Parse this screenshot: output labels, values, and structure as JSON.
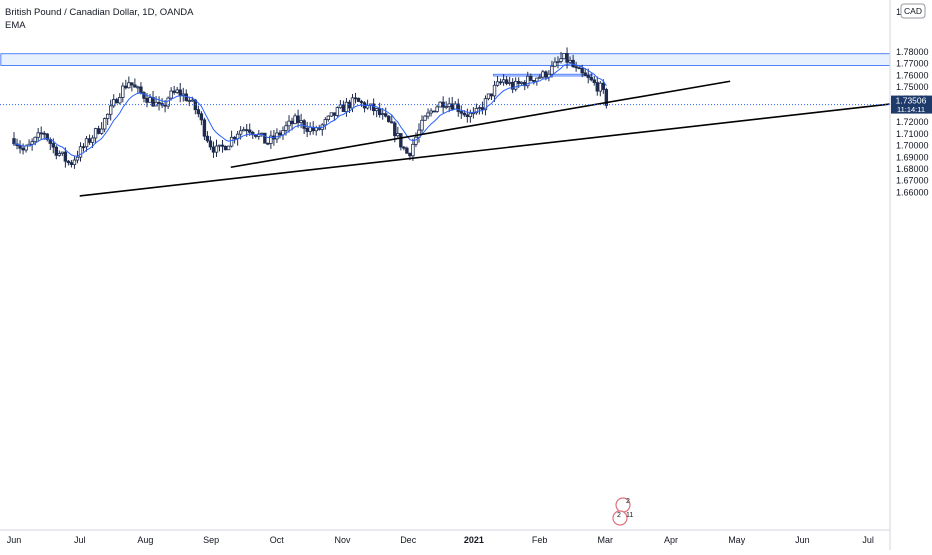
{
  "header": {
    "symbol_line": "British Pound / Canadian Dollar, 1D, OANDA",
    "indicator_label": "EMA",
    "currency_badge": "CAD",
    "badge_color": "#131722"
  },
  "colors": {
    "candle": "#1e2b4e",
    "ema": "#2962ff",
    "zone_fill": "#e3eefd",
    "zone_border": "#2962ff",
    "trendline": "#000000",
    "last_price_bg": "#1e3a6b",
    "dotted_line": "#2962ff"
  },
  "chart_data": {
    "type": "candlestick",
    "title": "British Pound / Canadian Dollar, 1D, OANDA",
    "ylim": [
      1.655,
      1.8025
    ],
    "y_ticks": [
      "1.78000",
      "1.77000",
      "1.76000",
      "1.75000",
      "1.74000",
      "1.73000",
      "1.72000",
      "1.71000",
      "1.70000",
      "1.69000",
      "1.68000",
      "1.67000",
      "1.66000"
    ],
    "x_ticks": [
      {
        "label": "Jun",
        "month": 0
      },
      {
        "label": "Jul",
        "month": 1
      },
      {
        "label": "Aug",
        "month": 2
      },
      {
        "label": "Sep",
        "month": 3
      },
      {
        "label": "Oct",
        "month": 4
      },
      {
        "label": "Nov",
        "month": 5
      },
      {
        "label": "Dec",
        "month": 6
      },
      {
        "label": "2021",
        "month": 7,
        "bold": true
      },
      {
        "label": "Feb",
        "month": 8
      },
      {
        "label": "Mar",
        "month": 9
      },
      {
        "label": "Apr",
        "month": 10
      },
      {
        "label": "May",
        "month": 11
      },
      {
        "label": "Jun",
        "month": 12
      },
      {
        "label": "Jul",
        "month": 13
      }
    ],
    "top_partial_tick": "1.7",
    "last_price": "1.73506",
    "last_price_value": 1.73506,
    "countdown": "11:14:11",
    "price_path": [
      [
        0,
        1.706
      ],
      [
        0.15,
        1.695
      ],
      [
        0.3,
        1.703
      ],
      [
        0.45,
        1.712
      ],
      [
        0.6,
        1.698
      ],
      [
        0.75,
        1.69
      ],
      [
        0.85,
        1.684
      ],
      [
        1.0,
        1.695
      ],
      [
        1.15,
        1.705
      ],
      [
        1.3,
        1.715
      ],
      [
        1.45,
        1.728
      ],
      [
        1.6,
        1.745
      ],
      [
        1.75,
        1.755
      ],
      [
        1.85,
        1.748
      ],
      [
        2.0,
        1.742
      ],
      [
        2.15,
        1.736
      ],
      [
        2.25,
        1.73
      ],
      [
        2.35,
        1.742
      ],
      [
        2.5,
        1.746
      ],
      [
        2.65,
        1.74
      ],
      [
        2.8,
        1.728
      ],
      [
        2.9,
        1.712
      ],
      [
        3.0,
        1.7
      ],
      [
        3.1,
        1.695
      ],
      [
        3.25,
        1.702
      ],
      [
        3.4,
        1.712
      ],
      [
        3.55,
        1.716
      ],
      [
        3.7,
        1.71
      ],
      [
        3.85,
        1.702
      ],
      [
        4.0,
        1.708
      ],
      [
        4.15,
        1.716
      ],
      [
        4.3,
        1.722
      ],
      [
        4.45,
        1.716
      ],
      [
        4.6,
        1.712
      ],
      [
        4.75,
        1.72
      ],
      [
        4.9,
        1.728
      ],
      [
        5.05,
        1.734
      ],
      [
        5.2,
        1.738
      ],
      [
        5.35,
        1.734
      ],
      [
        5.5,
        1.73
      ],
      [
        5.65,
        1.722
      ],
      [
        5.8,
        1.712
      ],
      [
        5.9,
        1.7
      ],
      [
        6.0,
        1.692
      ],
      [
        6.1,
        1.705
      ],
      [
        6.25,
        1.722
      ],
      [
        6.4,
        1.733
      ],
      [
        6.55,
        1.738
      ],
      [
        6.7,
        1.735
      ],
      [
        6.85,
        1.728
      ],
      [
        7.0,
        1.725
      ],
      [
        7.15,
        1.735
      ],
      [
        7.3,
        1.748
      ],
      [
        7.45,
        1.756
      ],
      [
        7.6,
        1.75
      ],
      [
        7.75,
        1.754
      ],
      [
        7.9,
        1.758
      ],
      [
        8.05,
        1.76
      ],
      [
        8.2,
        1.766
      ],
      [
        8.35,
        1.775
      ],
      [
        8.45,
        1.772
      ],
      [
        8.55,
        1.764
      ],
      [
        8.65,
        1.76
      ],
      [
        8.75,
        1.756
      ],
      [
        8.85,
        1.752
      ],
      [
        8.95,
        1.748
      ],
      [
        9.0,
        1.738
      ],
      [
        9.05,
        1.735
      ]
    ],
    "zones": [
      {
        "from_month": -0.2,
        "to_month": 14.5,
        "low": 1.7685,
        "high": 1.7785
      },
      {
        "from_month": 7.3,
        "to_month": 8.8,
        "low": 1.7595,
        "high": 1.761
      }
    ],
    "trendlines": [
      {
        "x1": 3.3,
        "y1": 1.6815,
        "x2": 10.9,
        "y2": 1.755
      },
      {
        "x1": 1.0,
        "y1": 1.657,
        "x2": 14.4,
        "y2": 1.7355
      }
    ]
  },
  "axis_colors": {
    "grid": "#ffffff",
    "text": "#131722"
  }
}
